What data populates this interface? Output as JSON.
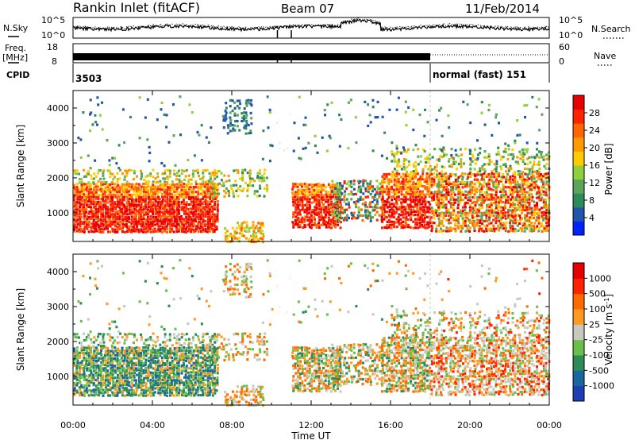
{
  "header": {
    "station": "Rankin Inlet (fitACF)",
    "beam": "Beam 07",
    "date": "11/Feb/2014"
  },
  "noise_panel": {
    "left_label": "N.Sky",
    "right_label": "N.Search",
    "left_ticks": [
      "10^5",
      "10^0"
    ],
    "right_ticks": [
      "10^5",
      "10^0"
    ],
    "right_style": "dotted"
  },
  "freq_panel": {
    "left_label_1": "Freq.",
    "left_label_2": "[MHz]",
    "right_label": "Nave",
    "left_ticks": [
      "18",
      "8"
    ],
    "right_ticks": [
      "60",
      "0"
    ],
    "right_style": "dotted"
  },
  "cpid_panel": {
    "label": "CPID",
    "segments": [
      {
        "start_hour": 0,
        "text": "3503"
      },
      {
        "start_hour": 18,
        "text": "normal (fast) 151"
      }
    ]
  },
  "chart_data": [
    {
      "type": "heatmap",
      "name": "power",
      "ylabel": "Slant Range [km]",
      "yticks": [
        1000,
        2000,
        3000,
        4000
      ],
      "ylim": [
        180,
        4500
      ],
      "colorbar_label": "Power [dB]",
      "colorbar_ticks": [
        "4",
        "8",
        "12",
        "16",
        "20",
        "24",
        "28"
      ],
      "colorbar_range": [
        0,
        32
      ],
      "colors": [
        "#0022ff",
        "#2255aa",
        "#2e8b57",
        "#5aa55a",
        "#8fd13a",
        "#ffcc00",
        "#ff9900",
        "#ff6600",
        "#ff2200",
        "#e60000"
      ]
    },
    {
      "type": "heatmap",
      "name": "velocity",
      "ylabel": "Slant Range [km]",
      "yticks": [
        1000,
        2000,
        3000,
        4000
      ],
      "ylim": [
        180,
        4500
      ],
      "colorbar_label": "Velocity [m s",
      "colorbar_label_sup": "-1",
      "colorbar_label_end": "]",
      "colorbar_ticks": [
        "1000",
        "500",
        "100",
        "25",
        "-25",
        "-100",
        "-500",
        "-1000"
      ],
      "colors": [
        "#1e3fb4",
        "#1a66a0",
        "#2e8b57",
        "#6abf4b",
        "#c8c8c0",
        "#ff9a20",
        "#ff6a00",
        "#ff2200",
        "#e60000"
      ]
    }
  ],
  "x_axis": {
    "label": "Time UT",
    "ticks": [
      "00:00",
      "04:00",
      "08:00",
      "12:00",
      "16:00",
      "20:00",
      "00:00"
    ],
    "range_hours": [
      0,
      24
    ]
  }
}
